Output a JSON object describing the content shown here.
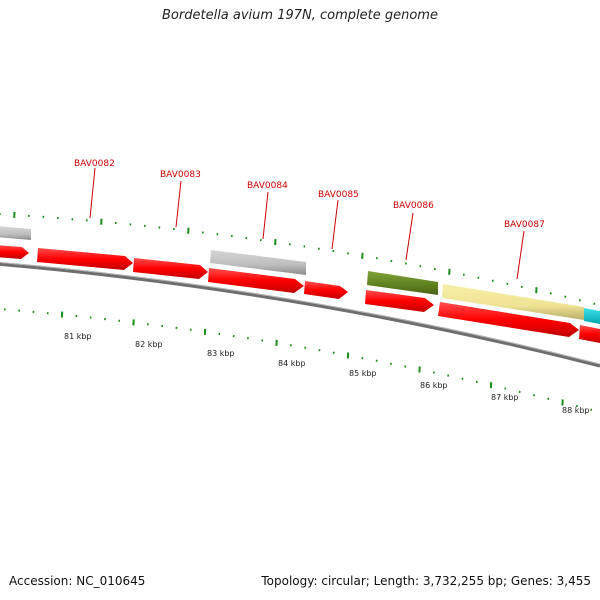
{
  "title": "Bordetella avium 197N, complete genome",
  "footer": {
    "accession": "Accession: NC_010645",
    "stats": "Topology: circular; Length: 3,732,255 bp; Genes: 3,455"
  },
  "colors": {
    "gene_red": "#ff0000",
    "gene_gray": "#c0c0c0",
    "gene_olive": "#6b8e23",
    "gene_khaki": "#f0e68c",
    "gene_cyan": "#00ced1",
    "tick_green": "#1a8c1a",
    "backbone": "#808080",
    "label_red": "#cc0000"
  },
  "gene_labels": [
    "BAV0082",
    "BAV0083",
    "BAV0084",
    "BAV0085",
    "BAV0086",
    "BAV0087"
  ],
  "kbp_labels": [
    "81 kbp",
    "82 kbp",
    "83 kbp",
    "84 kbp",
    "85 kbp",
    "86 kbp",
    "87 kbp",
    "88 kbp"
  ]
}
